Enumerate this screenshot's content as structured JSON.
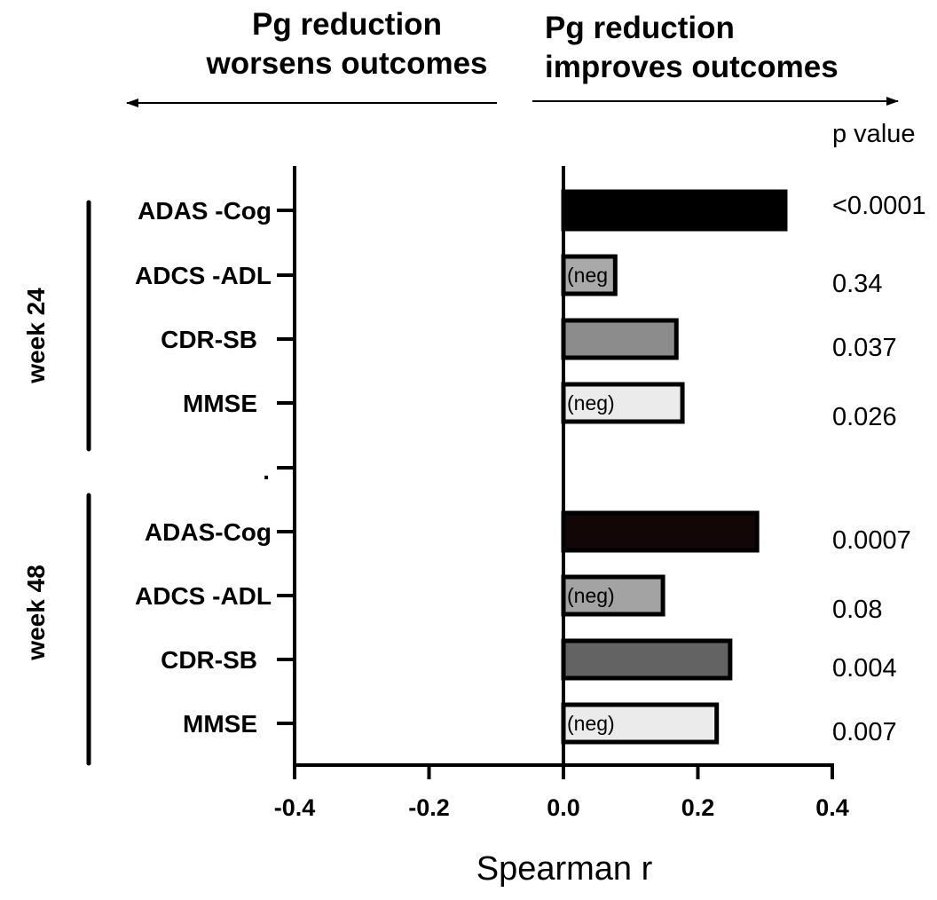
{
  "header": {
    "left_line1": "Pg reduction",
    "left_line2": "worsens outcomes",
    "right_line1": "Pg reduction",
    "right_line2": "improves outcomes"
  },
  "chart_data": {
    "type": "bar",
    "orientation": "horizontal",
    "xlabel": "Spearman r",
    "xlim": [
      -0.4,
      0.4
    ],
    "xticks": [
      "-0.4",
      "-0.2",
      "0.0",
      "0.2",
      "0.4"
    ],
    "pvalue_header": "p value",
    "separator_label": ".",
    "groups": [
      {
        "label": "week 24",
        "rows": [
          {
            "label": "ADAS -Cog",
            "value": 0.33,
            "p": "<0.0001",
            "note": "",
            "color": "#000000"
          },
          {
            "label": "ADCS -ADL",
            "value": 0.077,
            "p": "0.34",
            "note": "(neg",
            "color": "#a9a9a9"
          },
          {
            "label": "CDR-SB",
            "value": 0.168,
            "p": "0.037",
            "note": "",
            "color": "#8c8c8c"
          },
          {
            "label": "MMSE",
            "value": 0.177,
            "p": "0.026",
            "note": "(neg)",
            "color": "#ebebeb"
          }
        ]
      },
      {
        "label": "week 48",
        "rows": [
          {
            "label": "ADAS-Cog",
            "value": 0.288,
            "p": "0.0007",
            "note": "",
            "color": "#130606"
          },
          {
            "label": "ADCS -ADL",
            "value": 0.148,
            "p": "0.08",
            "note": "(neg)",
            "color": "#a3a3a3"
          },
          {
            "label": "CDR-SB",
            "value": 0.248,
            "p": "0.004",
            "note": "",
            "color": "#636363"
          },
          {
            "label": "MMSE",
            "value": 0.228,
            "p": "0.007",
            "note": "(neg)",
            "color": "#ebebeb"
          }
        ]
      }
    ]
  }
}
